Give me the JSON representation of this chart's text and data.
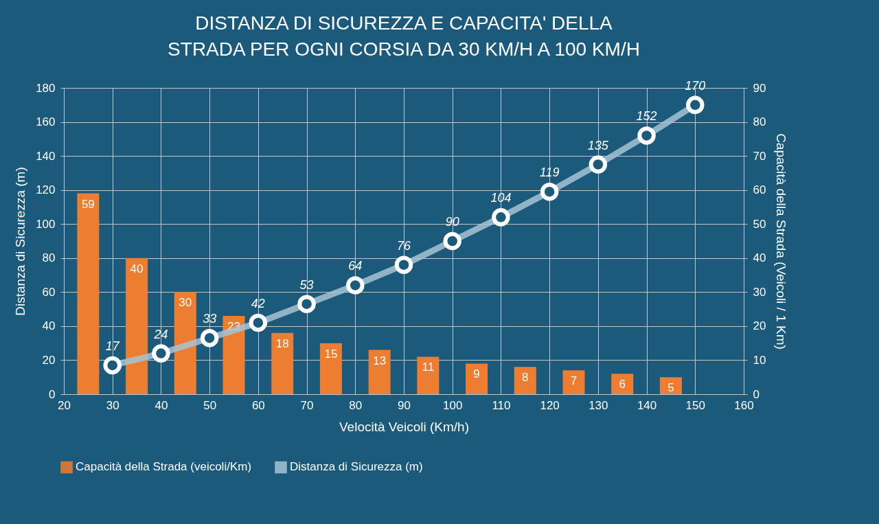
{
  "chart_data": {
    "type": "bar",
    "title": "DISTANZA DI SICUREZZA E CAPACITA' DELLA STRADA PER OGNI CORSIA DA 30 KM/H A 100 KM/H",
    "xlabel": "Velocità Veicoli (Km/h)",
    "ylabel": "Distanza di Sicurezza (m)",
    "y2label": "Capacità della Strada (Veicoli / 1 Km)",
    "series": [
      {
        "name": "Capacità della Strada (veicoli/Km)",
        "color": "#ed7d31",
        "axis": "y2",
        "x": [
          25,
          35,
          45,
          55,
          65,
          75,
          85,
          95,
          105,
          115,
          125,
          135,
          145
        ],
        "values": [
          59,
          40,
          30,
          23,
          18,
          15,
          13,
          11,
          9,
          8,
          7,
          6,
          5
        ]
      },
      {
        "type": "line",
        "name": "Distanza di Sicurezza (m)",
        "color": "#a6c3d6",
        "marker": "circle",
        "line_style": "solid",
        "x": [
          30,
          40,
          50,
          60,
          70,
          80,
          90,
          100,
          110,
          120,
          130,
          140,
          150
        ],
        "values": [
          17,
          24,
          33,
          42,
          53,
          64,
          76,
          90,
          104,
          119,
          135,
          152,
          170
        ]
      }
    ],
    "xlim": [
      20,
      160
    ],
    "xticks": [
      20,
      30,
      40,
      50,
      60,
      70,
      80,
      90,
      100,
      110,
      120,
      130,
      140,
      150,
      160
    ],
    "ylim": [
      0,
      180
    ],
    "yticks": [
      0,
      20,
      40,
      60,
      80,
      100,
      120,
      140,
      160,
      180
    ],
    "y2lim": [
      0,
      90
    ],
    "y2ticks": [
      0,
      10,
      20,
      30,
      40,
      50,
      60,
      70,
      80,
      90
    ],
    "grid": true,
    "legend": "bottom",
    "data_labels": true
  }
}
